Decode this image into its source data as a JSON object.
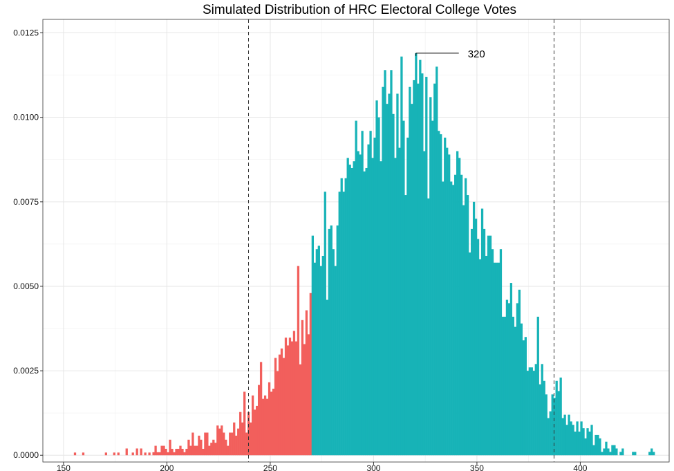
{
  "chart_data": {
    "type": "bar",
    "title": "Simulated Distribution of HRC Electoral College Votes",
    "xlabel": "",
    "ylabel": "",
    "xlim": [
      140,
      443
    ],
    "ylim": [
      -0.0002,
      0.0129
    ],
    "x_ticks": [
      "150",
      "200",
      "250",
      "300",
      "350",
      "400"
    ],
    "x_tick_values": [
      150,
      200,
      250,
      300,
      350,
      400
    ],
    "y_ticks": [
      "0.0000",
      "0.0025",
      "0.0050",
      "0.0075",
      "0.0100",
      "0.0125"
    ],
    "y_tick_values": [
      0,
      0.0025,
      0.005,
      0.0075,
      0.01,
      0.0125
    ],
    "grid": true,
    "legend": "none",
    "bin_width": 1,
    "x_start": 155,
    "values_scale": 0.0001,
    "values_note": "density x 10^4, one per electoral vote starting at x_start",
    "values": [
      0.8,
      0,
      0,
      0,
      0.8,
      0,
      0,
      0,
      0,
      0,
      0,
      0,
      0,
      0,
      0,
      0.8,
      0,
      0,
      0,
      0.8,
      0,
      0.8,
      0,
      0,
      0,
      2,
      0,
      0,
      0.8,
      0,
      2,
      0,
      2,
      0,
      0.8,
      0,
      0.8,
      0,
      0.9,
      2.8,
      0.9,
      0.9,
      2.8,
      2.8,
      1.9,
      0.9,
      4.6,
      1.9,
      0.9,
      1.9,
      1.9,
      2.8,
      1.9,
      0.9,
      1.9,
      4.6,
      2.8,
      6.7,
      2.8,
      2.8,
      5.8,
      4.6,
      1.9,
      6.7,
      6.7,
      2.8,
      3.7,
      4.6,
      3.7,
      8.8,
      7.9,
      8.8,
      6.7,
      4.6,
      2.8,
      6.7,
      6.7,
      9.7,
      5.8,
      7.9,
      12.8,
      9.7,
      18.8,
      6.7,
      12.8,
      9.7,
      17.7,
      13.5,
      14.6,
      20.8,
      27.6,
      16.7,
      17.7,
      16.7,
      21.6,
      18.8,
      19.7,
      28.8,
      24.9,
      29.8,
      31.6,
      28.8,
      34.8,
      32.5,
      34.8,
      33.7,
      36.8,
      33.7,
      56,
      26.9,
      40,
      32.9,
      42.9,
      35.8,
      48,
      65,
      57,
      61,
      62,
      56,
      59,
      78,
      46,
      67,
      68,
      61,
      56,
      68,
      78,
      82,
      78,
      82,
      88,
      86,
      85,
      87,
      99,
      90,
      89,
      96,
      84,
      85,
      92,
      96,
      88,
      94,
      105,
      100,
      87,
      109,
      114,
      104,
      107,
      114,
      101,
      88,
      107,
      91,
      118,
      99,
      77,
      94,
      109,
      104,
      111,
      119,
      110,
      117,
      113,
      90,
      112,
      76,
      106,
      99,
      110,
      115,
      96,
      95,
      81,
      94,
      91,
      89,
      81,
      80,
      83,
      90,
      88,
      83,
      74,
      82,
      77,
      60,
      67,
      75,
      70,
      64,
      58,
      73,
      67,
      59,
      65,
      65,
      61,
      57,
      57,
      57,
      61,
      41,
      41,
      46,
      45,
      51,
      41,
      38,
      45,
      49,
      39,
      34,
      35,
      25,
      26,
      26,
      25,
      27,
      41,
      21,
      27,
      22,
      18,
      11,
      13,
      18,
      17,
      22,
      19,
      23,
      11,
      12,
      9,
      12,
      10,
      9,
      7,
      10,
      7,
      10,
      8,
      5,
      8,
      7,
      9,
      3,
      6,
      6,
      5,
      1,
      2,
      4,
      2,
      1,
      3,
      3,
      2,
      0,
      1,
      2,
      0,
      0,
      0,
      0,
      1,
      1,
      0,
      0,
      0,
      0,
      0,
      0,
      1,
      2,
      1
    ],
    "split_at": 270,
    "series": [
      {
        "name": "below 270",
        "color": "#F25F5C"
      },
      {
        "name": "270 and above",
        "color": "#17B3B7"
      }
    ],
    "reference_lines": [
      239.5,
      387.3
    ],
    "annotation": {
      "label": "320",
      "x": 320
    }
  }
}
